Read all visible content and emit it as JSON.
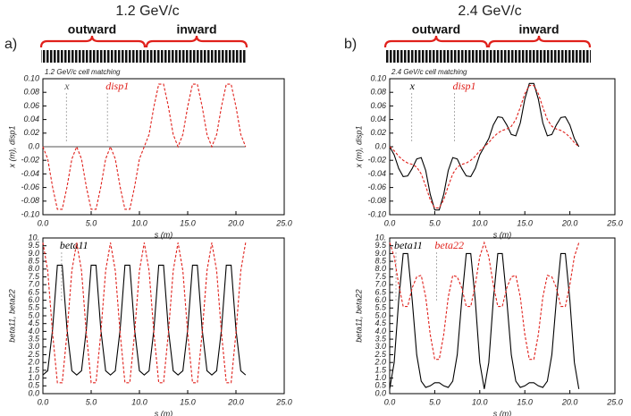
{
  "panels": [
    {
      "label": "a)",
      "title": "1.2 GeV/c",
      "regions": [
        "outward",
        "inward"
      ]
    },
    {
      "label": "b)",
      "title": "2.4 GeV/c",
      "regions": [
        "outward",
        "inward"
      ]
    }
  ],
  "chart_data": [
    {
      "type": "line",
      "title": "1.2 GeV/c cell matching",
      "xlabel": "s (m)",
      "ylabel": "x (m), disp1",
      "x": [
        0,
        0.5,
        1,
        1.5,
        2,
        2.5,
        3,
        3.5,
        4,
        4.5,
        5,
        5.5,
        6,
        6.5,
        7,
        7.5,
        8,
        8.5,
        9,
        9.5,
        10,
        10.5,
        11,
        11.5,
        12,
        12.5,
        13,
        13.5,
        14,
        14.5,
        15,
        15.5,
        16,
        16.5,
        17,
        17.5,
        18,
        18.5,
        19,
        19.5,
        20,
        20.5,
        21
      ],
      "series": [
        {
          "name": "x",
          "color": "#555555",
          "style": "solid",
          "values": [
            0,
            0,
            0,
            0,
            0,
            0,
            0,
            0,
            0,
            0,
            0,
            0,
            0,
            0,
            0,
            0,
            0,
            0,
            0,
            0,
            0,
            0,
            0,
            0,
            0,
            0,
            0,
            0,
            0,
            0,
            0,
            0,
            0,
            0,
            0,
            0,
            0,
            0,
            0,
            0,
            0,
            0,
            0
          ]
        },
        {
          "name": "disp1",
          "color": "#e0201b",
          "style": "dashed",
          "values": [
            0,
            -0.018,
            -0.059,
            -0.092,
            -0.092,
            -0.059,
            -0.018,
            0,
            -0.018,
            -0.059,
            -0.092,
            -0.092,
            -0.059,
            -0.018,
            0,
            -0.018,
            -0.059,
            -0.092,
            -0.092,
            -0.059,
            -0.018,
            0,
            0.018,
            0.059,
            0.092,
            0.092,
            0.059,
            0.018,
            0,
            0.018,
            0.059,
            0.092,
            0.092,
            0.059,
            0.018,
            0,
            0.018,
            0.059,
            0.092,
            0.092,
            0.059,
            0.018,
            0
          ]
        }
      ],
      "xlim": [
        0,
        25
      ],
      "xticks": [
        {
          "value": 0,
          "label": "0.0"
        },
        {
          "value": 5,
          "label": "5.0"
        },
        {
          "value": 10,
          "label": "10.0"
        },
        {
          "value": 15,
          "label": "15.0"
        },
        {
          "value": 20,
          "label": "20.0"
        },
        {
          "value": 25,
          "label": "25.0"
        }
      ],
      "ylim": [
        -0.1,
        0.1
      ],
      "yticks": [
        {
          "value": -0.1,
          "label": "-0.10"
        },
        -0.08,
        -0.06,
        -0.04,
        -0.02,
        {
          "value": 0,
          "label": "0.0"
        },
        0.02,
        0.04,
        0.06,
        0.08,
        {
          "value": 0.1,
          "label": "0.10"
        }
      ]
    },
    {
      "type": "line",
      "xlabel": "s (m)",
      "ylabel": "beta11, beta22",
      "x": [
        0,
        0.5,
        1,
        1.5,
        2,
        2.5,
        3,
        3.5,
        4,
        4.5,
        5,
        5.5,
        6,
        6.5,
        7,
        7.5,
        8,
        8.5,
        9,
        9.5,
        10,
        10.5,
        11,
        11.5,
        12,
        12.5,
        13,
        13.5,
        14,
        14.5,
        15,
        15.5,
        16,
        16.5,
        17,
        17.5,
        18,
        18.5,
        19,
        19.5,
        20,
        20.5,
        21
      ],
      "series": [
        {
          "name": "beta11",
          "color": "#000000",
          "style": "solid",
          "values": [
            1.2,
            1.47,
            4.11,
            8.25,
            8.25,
            4.11,
            1.47,
            1.2,
            1.47,
            4.11,
            8.25,
            8.25,
            4.11,
            1.47,
            1.2,
            1.47,
            4.11,
            8.25,
            8.25,
            4.11,
            1.47,
            1.2,
            1.47,
            4.11,
            8.25,
            8.25,
            4.11,
            1.47,
            1.2,
            1.47,
            4.11,
            8.25,
            8.25,
            4.11,
            1.47,
            1.2,
            1.47,
            4.11,
            8.25,
            8.25,
            4.11,
            1.47,
            1.2
          ]
        },
        {
          "color": "#e0201b",
          "style": "dashed",
          "values": [
            9.7,
            7.9,
            3.9,
            0.7,
            0.7,
            3.9,
            7.9,
            9.7,
            7.9,
            3.9,
            0.7,
            0.7,
            3.9,
            7.9,
            9.7,
            7.9,
            3.9,
            0.7,
            0.7,
            3.9,
            7.9,
            9.7,
            7.9,
            3.9,
            0.7,
            0.7,
            3.9,
            7.9,
            9.7,
            7.9,
            3.9,
            0.7,
            0.7,
            3.9,
            7.9,
            9.7,
            7.9,
            3.9,
            0.7,
            0.7,
            3.9,
            7.9,
            9.7
          ]
        }
      ],
      "xlim": [
        0,
        25
      ],
      "xticks": [
        {
          "value": 0,
          "label": "0.0"
        },
        {
          "value": 5,
          "label": "5.0"
        },
        {
          "value": 10,
          "label": "10.0"
        },
        {
          "value": 15,
          "label": "15.0"
        },
        {
          "value": 20,
          "label": "20.0"
        },
        {
          "value": 25,
          "label": "25.0"
        }
      ],
      "ylim": [
        0,
        10
      ],
      "yticks": [
        {
          "value": 0,
          "label": "0.0"
        },
        0.5,
        {
          "value": 1,
          "label": "1.0"
        },
        1.5,
        {
          "value": 2,
          "label": "2.0"
        },
        2.5,
        {
          "value": 3,
          "label": "3.0"
        },
        3.5,
        {
          "value": 4,
          "label": "4.0"
        },
        4.5,
        {
          "value": 5,
          "label": "5.0"
        },
        5.5,
        {
          "value": 6,
          "label": "6.0"
        },
        6.5,
        {
          "value": 7,
          "label": "7.0"
        },
        7.5,
        {
          "value": 8,
          "label": "8.0"
        },
        8.5,
        {
          "value": 9,
          "label": "9.0"
        },
        9.5,
        {
          "value": 10,
          "label": "10."
        }
      ]
    },
    {
      "type": "line",
      "title": "2.4 GeV/c cell matching",
      "xlabel": "s (m)",
      "ylabel": "x (m), disp1",
      "x": [
        0,
        0.5,
        1,
        1.5,
        2,
        2.5,
        3,
        3.5,
        4,
        4.5,
        5,
        5.5,
        6,
        6.5,
        7,
        7.5,
        8,
        8.5,
        9,
        9.5,
        10,
        10.5,
        11,
        11.5,
        12,
        12.5,
        13,
        13.5,
        14,
        14.5,
        15,
        15.5,
        16,
        16.5,
        17,
        17.5,
        18,
        18.5,
        19,
        19.5,
        20,
        20.5,
        21
      ],
      "series": [
        {
          "name": "x",
          "color": "#000000",
          "style": "solid",
          "values": [
            0,
            -0.012,
            -0.032,
            -0.044,
            -0.043,
            -0.032,
            -0.018,
            -0.016,
            -0.035,
            -0.07,
            -0.093,
            -0.093,
            -0.07,
            -0.035,
            -0.016,
            -0.018,
            -0.032,
            -0.043,
            -0.044,
            -0.032,
            -0.012,
            0,
            0.012,
            0.032,
            0.044,
            0.043,
            0.032,
            0.018,
            0.016,
            0.035,
            0.07,
            0.093,
            0.093,
            0.07,
            0.035,
            0.016,
            0.018,
            0.032,
            0.043,
            0.044,
            0.032,
            0.012,
            0
          ]
        },
        {
          "name": "disp1",
          "color": "#e0201b",
          "style": "dashed",
          "values": [
            0,
            -0.006,
            -0.014,
            -0.02,
            -0.024,
            -0.026,
            -0.03,
            -0.04,
            -0.058,
            -0.078,
            -0.09,
            -0.09,
            -0.078,
            -0.058,
            -0.04,
            -0.03,
            -0.026,
            -0.024,
            -0.02,
            -0.014,
            -0.006,
            0,
            0.006,
            0.014,
            0.02,
            0.024,
            0.026,
            0.03,
            0.04,
            0.058,
            0.078,
            0.09,
            0.09,
            0.078,
            0.058,
            0.04,
            0.03,
            0.026,
            0.024,
            0.02,
            0.014,
            0.006,
            0
          ]
        }
      ],
      "xlim": [
        0,
        25
      ],
      "xticks": [
        {
          "value": 0,
          "label": "0.0"
        },
        {
          "value": 5,
          "label": "5.0"
        },
        {
          "value": 10,
          "label": "10.0"
        },
        {
          "value": 15,
          "label": "15.0"
        },
        {
          "value": 20,
          "label": "20.0"
        },
        {
          "value": 25,
          "label": "25.0"
        }
      ],
      "ylim": [
        -0.1,
        0.1
      ],
      "yticks": [
        {
          "value": -0.1,
          "label": "-0.10"
        },
        -0.08,
        -0.06,
        -0.04,
        -0.02,
        {
          "value": 0,
          "label": "0.0"
        },
        0.02,
        0.04,
        0.06,
        0.08,
        {
          "value": 0.1,
          "label": "0.10"
        }
      ]
    },
    {
      "type": "line",
      "xlabel": "s (m)",
      "ylabel": "beta11, beta22",
      "x": [
        0,
        0.5,
        1,
        1.5,
        2,
        2.5,
        3,
        3.5,
        4,
        4.5,
        5,
        5.5,
        6,
        6.5,
        7,
        7.5,
        8,
        8.5,
        9,
        9.5,
        10,
        10.5,
        11,
        11.5,
        12,
        12.5,
        13,
        13.5,
        14,
        14.5,
        15,
        15.5,
        16,
        16.5,
        17,
        17.5,
        18,
        18.5,
        19,
        19.5,
        20,
        20.5,
        21
      ],
      "series": [
        {
          "name": "beta11",
          "color": "#000000",
          "style": "solid",
          "values": [
            0.3,
            2,
            6,
            9,
            9,
            6,
            2.5,
            0.8,
            0.4,
            0.5,
            0.7,
            0.7,
            0.5,
            0.4,
            0.8,
            2.5,
            6,
            9,
            9,
            6,
            2,
            0.3,
            2,
            6,
            9,
            9,
            6,
            2.5,
            0.8,
            0.4,
            0.5,
            0.7,
            0.7,
            0.5,
            0.4,
            0.8,
            2.5,
            6,
            9,
            9,
            6,
            2,
            0.3
          ]
        },
        {
          "name": "beta22",
          "color": "#e0201b",
          "style": "dashed",
          "values": [
            9.7,
            8.8,
            7,
            5.6,
            5.6,
            6.8,
            7.5,
            7.6,
            6.2,
            3.8,
            2.2,
            2.2,
            3.8,
            6.2,
            7.6,
            7.5,
            6.8,
            5.6,
            5.6,
            7,
            8.8,
            9.7,
            8.8,
            7,
            5.6,
            5.6,
            6.8,
            7.5,
            7.6,
            6.2,
            3.8,
            2.2,
            2.2,
            3.8,
            6.2,
            7.6,
            7.5,
            6.8,
            5.6,
            5.6,
            7,
            8.8,
            9.7
          ]
        }
      ],
      "xlim": [
        0,
        25
      ],
      "xticks": [
        {
          "value": 0,
          "label": "0.0"
        },
        {
          "value": 5,
          "label": "5.0"
        },
        {
          "value": 10,
          "label": "10.0"
        },
        {
          "value": 15,
          "label": "15.0"
        },
        {
          "value": 20,
          "label": "20.0"
        },
        {
          "value": 25,
          "label": "25.0"
        }
      ],
      "ylim": [
        0,
        10
      ],
      "yticks": [
        {
          "value": 0,
          "label": "0.0"
        },
        0.5,
        {
          "value": 1,
          "label": "1.0"
        },
        1.5,
        {
          "value": 2,
          "label": "2.0"
        },
        2.5,
        {
          "value": 3,
          "label": "3.0"
        },
        3.5,
        {
          "value": 4,
          "label": "4.0"
        },
        4.5,
        {
          "value": 5,
          "label": "5.0"
        },
        5.5,
        {
          "value": 6,
          "label": "6.0"
        },
        6.5,
        {
          "value": 7,
          "label": "7.0"
        },
        7.5,
        {
          "value": 8,
          "label": "8.0"
        },
        8.5,
        {
          "value": 9,
          "label": "9.0"
        },
        9.5,
        {
          "value": 10,
          "label": "10."
        }
      ]
    }
  ]
}
